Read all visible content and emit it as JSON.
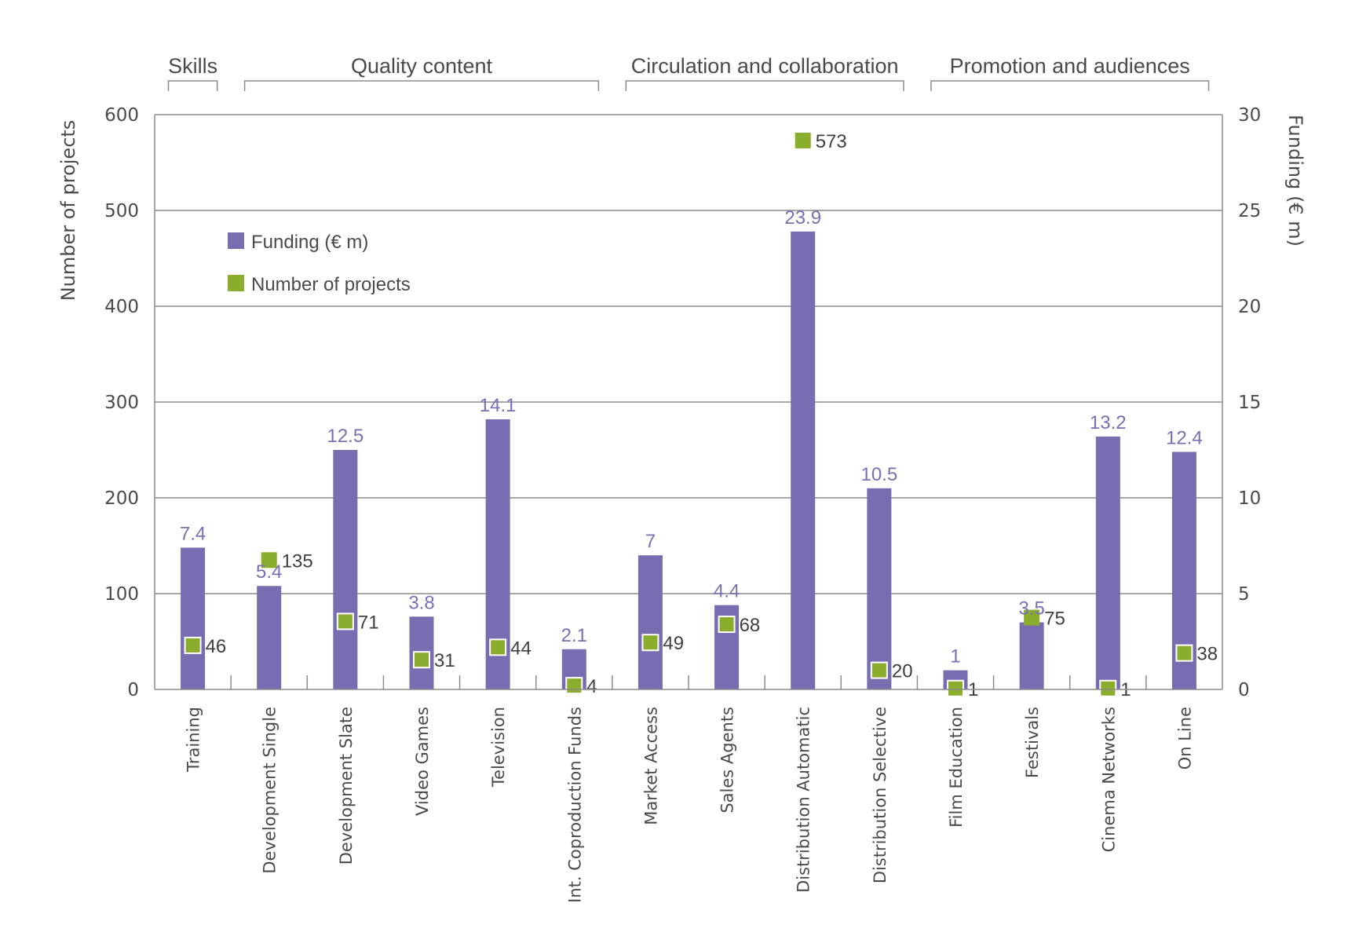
{
  "chart_data": {
    "type": "bar",
    "title": "",
    "categories": [
      "Training",
      "Development Single",
      "Development Slate",
      "Video Games",
      "Television",
      "Int. Coproduction Funds",
      "Market Access",
      "Sales Agents",
      "Distribution Automatic",
      "Distribution Selective",
      "Film Education",
      "Festivals",
      "Cinema Networks",
      "On Line"
    ],
    "groups": [
      {
        "label": "Skills",
        "categories": [
          "Training"
        ]
      },
      {
        "label": "Quality content",
        "categories": [
          "Development Single",
          "Development Slate",
          "Video Games",
          "Television",
          "Int. Coproduction Funds"
        ]
      },
      {
        "label": "Circulation and collaboration",
        "categories": [
          "Market Access",
          "Sales Agents",
          "Distribution Automatic",
          "Distribution Selective"
        ]
      },
      {
        "label": "Promotion and audiences",
        "categories": [
          "Film Education",
          "Festivals",
          "Cinema Networks",
          "On Line"
        ]
      }
    ],
    "series": [
      {
        "name": "Funding (€ m)",
        "type": "bar",
        "axis": "right",
        "color": "#776db0",
        "values": [
          7.4,
          5.4,
          12.5,
          3.8,
          14.1,
          2.1,
          7,
          4.4,
          23.9,
          10.5,
          1,
          3.5,
          13.2,
          12.4
        ],
        "labels": [
          "7.4",
          "5.4",
          "12.5",
          "3.8",
          "14.1",
          "2.1",
          "7",
          "4.4",
          "23.9",
          "10.5",
          "1",
          "3.5",
          "13.2",
          "12.4"
        ]
      },
      {
        "name": "Number of projects",
        "type": "marker",
        "axis": "left",
        "color": "#8aad2e",
        "values": [
          46,
          135,
          71,
          31,
          44,
          4,
          49,
          68,
          573,
          20,
          1,
          75,
          1,
          38
        ],
        "labels": [
          "46",
          "135",
          "71",
          "31",
          "44",
          "4",
          "49",
          "68",
          "573",
          "20",
          "1",
          "75",
          "1",
          "38"
        ]
      }
    ],
    "ylabel": "Number of projects",
    "ylim": [
      0,
      600
    ],
    "yticks": [
      "0",
      "100",
      "200",
      "300",
      "400",
      "500",
      "600"
    ],
    "y2label": "Funding (€ m)",
    "y2lim": [
      0,
      30
    ],
    "y2ticks": [
      "0",
      "5",
      "10",
      "15",
      "20",
      "25",
      "30"
    ],
    "grid": true,
    "legend": {
      "position": "top-left",
      "items": [
        "Funding (€ m)",
        "Number of projects"
      ]
    }
  }
}
